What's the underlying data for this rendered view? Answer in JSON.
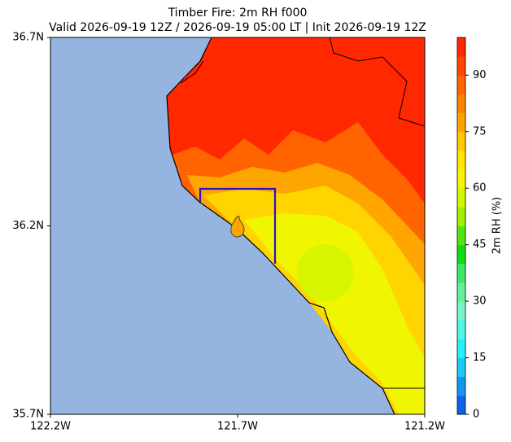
{
  "map": {
    "title": "Timber Fire: 2m RH f000",
    "subtitle": "Valid 2026-09-19 12Z / 2026-09-19 05:00 LT | Init 2026-09-19 12Z",
    "xlim": [
      -122.2,
      -121.2
    ],
    "ylim": [
      35.7,
      36.7
    ],
    "xticks": [
      {
        "value": -122.2,
        "label": "122.2W"
      },
      {
        "value": -121.7,
        "label": "121.7W"
      },
      {
        "value": -121.2,
        "label": "121.2W"
      }
    ],
    "yticks": [
      {
        "value": 35.7,
        "label": "35.7N"
      },
      {
        "value": 36.2,
        "label": "36.2N"
      },
      {
        "value": 36.7,
        "label": "36.7N"
      }
    ]
  },
  "colorbar": {
    "label": "2m RH (%)",
    "lim": [
      0,
      100
    ],
    "ticks": [
      0,
      15,
      30,
      45,
      60,
      75,
      90
    ],
    "colors": [
      "#0a64e8",
      "#1496f0",
      "#1ec8f5",
      "#28f0fa",
      "#50f5e8",
      "#78f5c8",
      "#64f098",
      "#3ce864",
      "#14dc14",
      "#50e614",
      "#a0f000",
      "#d2f500",
      "#f5f500",
      "#ffe600",
      "#ffc800",
      "#ffa500",
      "#ff8200",
      "#ff6400",
      "#ff4600",
      "#ff2800"
    ]
  }
}
